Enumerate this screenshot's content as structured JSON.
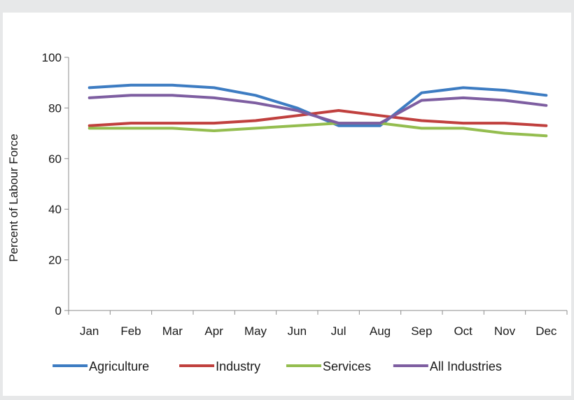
{
  "chart_data": {
    "type": "line",
    "title": "",
    "xlabel": "",
    "ylabel": "Percent of Labour Force",
    "ylim": [
      0,
      100
    ],
    "yticks": [
      0,
      20,
      40,
      60,
      80,
      100
    ],
    "grid": false,
    "legend": "bottom",
    "categories": [
      "Jan",
      "Feb",
      "Mar",
      "Apr",
      "May",
      "Jun",
      "Jul",
      "Aug",
      "Sep",
      "Oct",
      "Nov",
      "Dec"
    ],
    "series": [
      {
        "name": "Agriculture",
        "color": "#3d7cc2",
        "values": [
          88,
          89,
          89,
          88,
          85,
          80,
          73,
          73,
          86,
          88,
          87,
          85
        ]
      },
      {
        "name": "Industry",
        "color": "#c0403e",
        "values": [
          73,
          74,
          74,
          74,
          75,
          77,
          79,
          77,
          75,
          74,
          74,
          73
        ]
      },
      {
        "name": "Services",
        "color": "#94bd4f",
        "values": [
          72,
          72,
          72,
          71,
          72,
          73,
          74,
          74,
          72,
          72,
          70,
          69
        ]
      },
      {
        "name": "All Industries",
        "color": "#7e5ea1",
        "values": [
          84,
          85,
          85,
          84,
          82,
          79,
          74,
          74,
          83,
          84,
          83,
          81
        ]
      }
    ]
  }
}
